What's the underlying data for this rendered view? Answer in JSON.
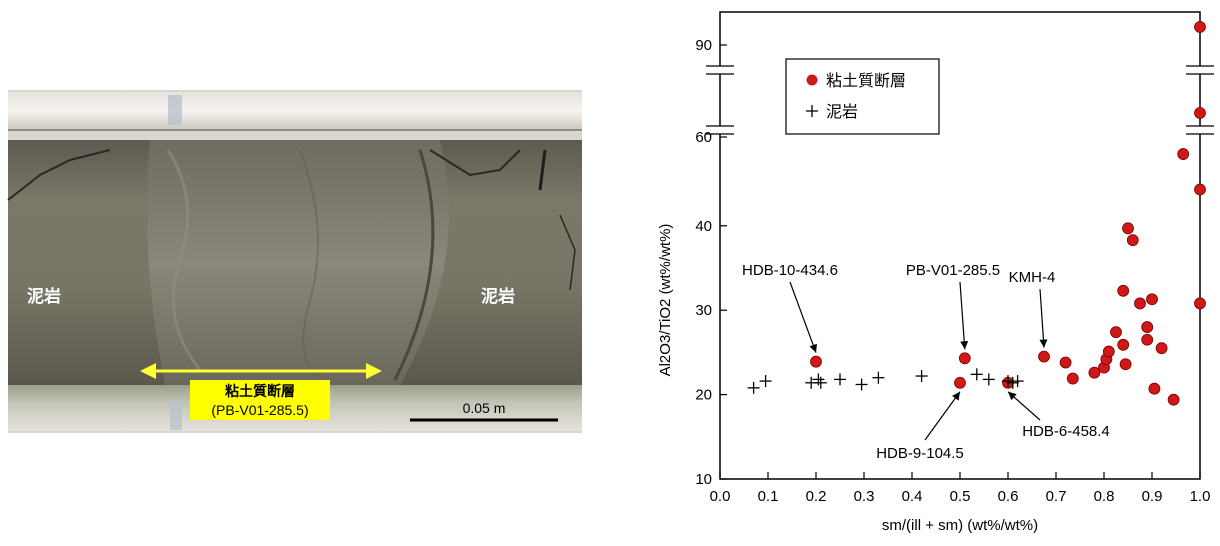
{
  "photo": {
    "label_left": "泥岩",
    "label_right": "泥岩",
    "fault_label_line1": "粘土質断層",
    "fault_label_line2": "(PB-V01-285.5)",
    "scale_label": "0.05 m",
    "colors": {
      "highlight": "#ffff00",
      "arrow": "#ffff33",
      "rock": "#6f6c5e"
    }
  },
  "chart_data": {
    "type": "scatter",
    "xlabel": "sm/(ill + sm) (wt%/wt%)",
    "ylabel": "Al2O3/TiO2 (wt%/wt%)",
    "xlim": [
      0.0,
      1.0
    ],
    "x_ticks": [
      "0.0",
      "0.1",
      "0.2",
      "0.3",
      "0.4",
      "0.5",
      "0.6",
      "0.7",
      "0.8",
      "0.9",
      "1.0"
    ],
    "y_ticks_lower": [
      "10",
      "20",
      "30",
      "40"
    ],
    "y_ticks_upper": [
      "60",
      "90"
    ],
    "ylim_lower": [
      10,
      50
    ],
    "y_axis_breaks": [
      [
        49,
        58
      ],
      [
        62,
        88
      ]
    ],
    "legend": {
      "placement": "top-left",
      "entries": [
        "粘土質断層",
        "泥岩"
      ]
    },
    "series": [
      {
        "name": "粘土質断層",
        "marker": "circle",
        "color": "#d01818",
        "points": [
          [
            0.2,
            23.9
          ],
          [
            0.51,
            24.3
          ],
          [
            0.5,
            21.4
          ],
          [
            0.6,
            21.4
          ],
          [
            0.675,
            24.5
          ],
          [
            0.72,
            23.8
          ],
          [
            0.735,
            21.9
          ],
          [
            0.78,
            22.6
          ],
          [
            0.8,
            23.2
          ],
          [
            0.805,
            24.2
          ],
          [
            0.81,
            25.1
          ],
          [
            0.825,
            27.4
          ],
          [
            0.84,
            25.9
          ],
          [
            0.84,
            32.3
          ],
          [
            0.845,
            23.6
          ],
          [
            0.85,
            39.7
          ],
          [
            0.86,
            38.3
          ],
          [
            0.875,
            30.8
          ],
          [
            0.89,
            28.0
          ],
          [
            0.89,
            26.5
          ],
          [
            0.9,
            31.3
          ],
          [
            0.905,
            20.7
          ],
          [
            0.92,
            25.5
          ],
          [
            0.945,
            19.4
          ],
          [
            0.965,
            48.5
          ],
          [
            1.0,
            30.8
          ],
          [
            1.0,
            44.3
          ],
          [
            1.0,
            66
          ],
          [
            1.0,
            96
          ]
        ]
      },
      {
        "name": "泥岩",
        "marker": "plus",
        "color": "#000000",
        "points": [
          [
            0.07,
            20.8
          ],
          [
            0.095,
            21.6
          ],
          [
            0.19,
            21.4
          ],
          [
            0.205,
            21.8
          ],
          [
            0.21,
            21.4
          ],
          [
            0.25,
            21.8
          ],
          [
            0.295,
            21.2
          ],
          [
            0.33,
            22.0
          ],
          [
            0.42,
            22.2
          ],
          [
            0.535,
            22.4
          ],
          [
            0.56,
            21.8
          ],
          [
            0.6,
            21.6
          ],
          [
            0.61,
            21.4
          ],
          [
            0.62,
            21.6
          ]
        ]
      }
    ],
    "annotations": [
      {
        "text": "HDB-10-434.6",
        "target": [
          0.2,
          23.9
        ]
      },
      {
        "text": "PB-V01-285.5",
        "target": [
          0.51,
          24.3
        ]
      },
      {
        "text": "KMH-4",
        "target": [
          0.675,
          24.5
        ]
      },
      {
        "text": "HDB-9-104.5",
        "target": [
          0.5,
          21.4
        ]
      },
      {
        "text": "HDB-6-458.4",
        "target": [
          0.6,
          21.4
        ]
      }
    ]
  }
}
